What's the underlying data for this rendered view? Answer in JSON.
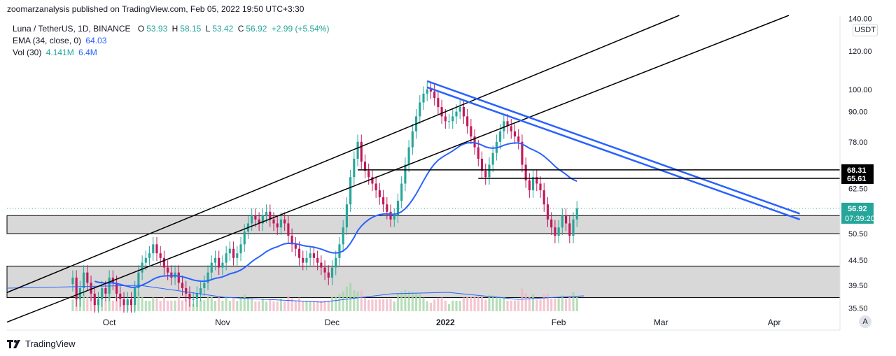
{
  "header": {
    "publisher_line": "zoomarzanalysis published on TradingView.com, Feb 05, 2022 19:50 UTC+3:30"
  },
  "legend": {
    "symbol": "Luna / TetherUS, 1D, BINANCE",
    "open_label": "O",
    "open": "53.93",
    "high_label": "H",
    "high": "58.15",
    "low_label": "L",
    "low": "53.42",
    "close_label": "C",
    "close": "56.92",
    "change": "+2.99 (+5.54%)",
    "ema_label": "EMA (34, close, 0)",
    "ema_value": "64.03",
    "vol_label": "Vol (30)",
    "vol_value": "4.141M",
    "vol_ma": "6.4M"
  },
  "price_axis": {
    "currency": "USDT",
    "labels": [
      "140.00",
      "120.00",
      "100.00",
      "90.00",
      "78.00",
      "62.50",
      "50.50",
      "44.50",
      "39.50",
      "35.50"
    ],
    "level_labels": [
      "68.31",
      "65.61"
    ],
    "last_price": "56.92",
    "countdown": "07:39:20"
  },
  "footer": {
    "brand": "TradingView"
  },
  "auto_button": "A",
  "colors": {
    "up": "#26a69a",
    "down": "#c2185b",
    "ema": "#2962ff",
    "trendline": "#2962ff",
    "channel": "#000000",
    "zone": "#d1d1d1",
    "vol_up": "#a5d6a7",
    "vol_down": "#f0b7c6",
    "vol_ma": "#2962ff",
    "badge_bg": "#26a69a"
  },
  "chart_data": {
    "type": "candlestick",
    "title": "Luna / TetherUS, 1D, BINANCE",
    "x_tick_labels": [
      "Oct",
      "Nov",
      "Dec",
      "2022",
      "Feb",
      "Mar",
      "Apr"
    ],
    "x_ticks": [
      "2021-10-01",
      "2021-11-01",
      "2021-12-01",
      "2022-01-01",
      "2022-02-01",
      "2022-03-01",
      "2022-04-01"
    ],
    "y_scale": "log",
    "ylim": [
      34.5,
      142
    ],
    "y_ticks": [
      140,
      120,
      100,
      90,
      78,
      62.5,
      50.5,
      44.5,
      39.5,
      35.5
    ],
    "series": [
      {
        "name": "Luna / TetherUS",
        "kind": "candles",
        "start_date": "2021-09-21",
        "close": [
          41,
          37,
          39,
          42,
          40,
          38,
          36,
          37,
          39,
          38,
          41,
          40,
          38,
          37,
          36,
          37,
          36,
          39,
          42,
          44,
          45,
          46,
          48,
          46,
          45,
          43,
          42,
          41,
          42,
          40,
          39,
          38,
          37,
          37,
          38,
          39,
          40,
          42,
          44,
          45,
          43,
          44,
          46,
          47,
          45,
          46,
          48,
          51,
          53,
          55,
          54,
          53,
          55,
          56,
          54,
          53,
          52,
          54,
          53,
          50,
          48,
          47,
          45,
          44,
          45,
          46,
          45,
          44,
          43,
          42,
          41,
          43,
          45,
          48,
          52,
          58,
          66,
          72,
          78,
          71,
          68,
          66,
          64,
          62,
          60,
          58,
          56,
          54,
          55,
          59,
          64,
          70,
          76,
          82,
          88,
          94,
          98,
          100,
          99,
          96,
          92,
          88,
          86,
          86,
          88,
          90,
          92,
          88,
          84,
          80,
          76,
          72,
          68,
          66,
          70,
          74,
          78,
          82,
          86,
          84,
          82,
          80,
          78,
          70,
          65,
          62,
          66,
          64,
          62,
          58,
          54,
          52,
          50,
          52,
          55,
          53,
          50,
          54,
          56.92
        ]
      },
      {
        "name": "EMA (34, close, 0)",
        "kind": "line",
        "last": 64.03
      },
      {
        "name": "Vol (30)",
        "kind": "volume",
        "last": "4.141M",
        "ma": "6.4M"
      }
    ],
    "horizontal_levels": [
      68.31,
      65.61
    ],
    "zones": [
      [
        50.5,
        55.0
      ],
      [
        37.3,
        43.3
      ]
    ],
    "annotations": [
      "ascending channel",
      "descending wedge lines"
    ]
  }
}
